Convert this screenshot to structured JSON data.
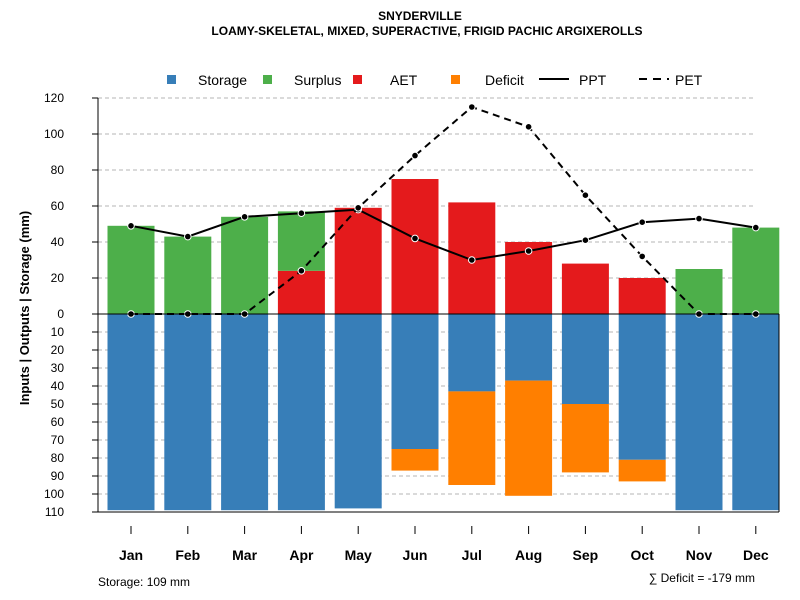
{
  "chart_data": {
    "type": "bar",
    "title": "SNYDERVILLE",
    "subtitle": "LOAMY-SKELETAL, MIXED, SUPERACTIVE, FRIGID PACHIC ARGIXEROLLS",
    "ylabel": "Inputs | Outputs | Storage    (mm)",
    "categories": [
      "Jan",
      "Feb",
      "Mar",
      "Apr",
      "May",
      "Jun",
      "Jul",
      "Aug",
      "Sep",
      "Oct",
      "Nov",
      "Dec"
    ],
    "upper_ylim": [
      0,
      120
    ],
    "upper_ticks": [
      "0",
      "20",
      "40",
      "60",
      "80",
      "100",
      "120"
    ],
    "lower_ylim": [
      0,
      110
    ],
    "lower_ticks": [
      "0",
      "10",
      "20",
      "30",
      "40",
      "50",
      "60",
      "70",
      "80",
      "90",
      "100",
      "110"
    ],
    "bar_series": [
      {
        "name": "Surplus",
        "color": "#4DAF4A",
        "panel": "upper",
        "values": [
          49,
          43,
          54,
          33,
          0,
          0,
          0,
          0,
          0,
          0,
          25,
          48
        ]
      },
      {
        "name": "AET",
        "color": "#E41A1C",
        "panel": "upper",
        "values": [
          0,
          0,
          0,
          24,
          59,
          75,
          62,
          40,
          28,
          20,
          0,
          0
        ]
      },
      {
        "name": "Storage",
        "color": "#377EB8",
        "panel": "lower",
        "values": [
          109,
          109,
          109,
          109,
          108,
          75,
          43,
          37,
          50,
          81,
          109,
          109
        ]
      },
      {
        "name": "Deficit",
        "color": "#FF7F00",
        "panel": "lower",
        "values": [
          0,
          0,
          0,
          0,
          0,
          12,
          52,
          64,
          38,
          12,
          0,
          0
        ]
      }
    ],
    "line_series": [
      {
        "name": "PPT",
        "style": "solid",
        "values": [
          49,
          43,
          54,
          56,
          58,
          42,
          30,
          35,
          41,
          51,
          53,
          48
        ]
      },
      {
        "name": "PET",
        "style": "dashed",
        "values": [
          0,
          0,
          0,
          24,
          59,
          88,
          115,
          104,
          66,
          32,
          0,
          0
        ]
      }
    ],
    "legend": [
      {
        "label": "Storage",
        "kind": "box",
        "color": "#377EB8"
      },
      {
        "label": "Surplus",
        "kind": "box",
        "color": "#4DAF4A"
      },
      {
        "label": "AET",
        "kind": "box",
        "color": "#E41A1C"
      },
      {
        "label": "Deficit",
        "kind": "box",
        "color": "#FF7F00"
      },
      {
        "label": "PPT",
        "kind": "solid"
      },
      {
        "label": "PET",
        "kind": "dashed"
      }
    ],
    "storage_note": "Storage: 109 mm",
    "deficit_note": "∑ Deficit = -179 mm"
  }
}
